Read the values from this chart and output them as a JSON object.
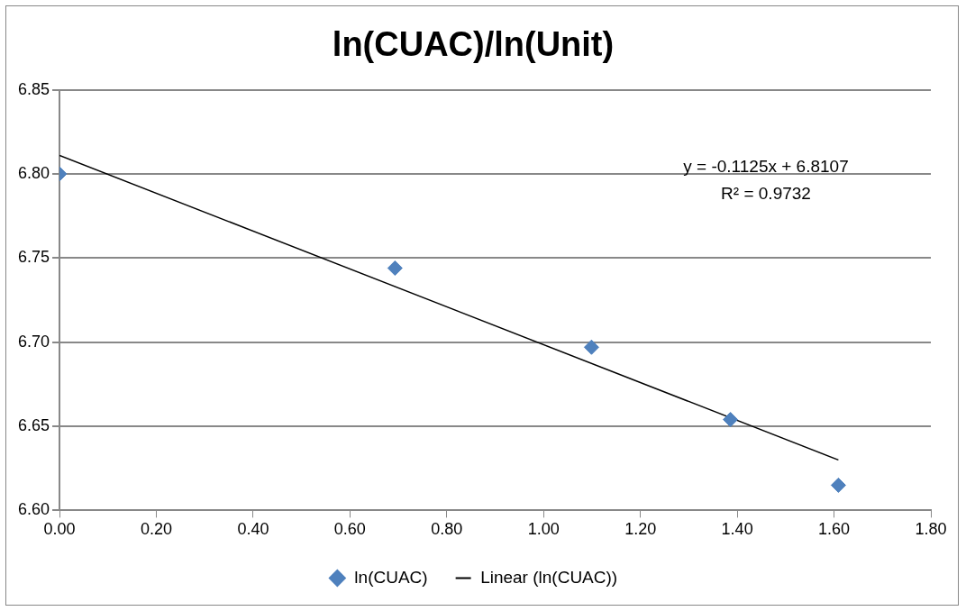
{
  "chart_data": {
    "type": "scatter",
    "title": "ln(CUAC)/ln(Unit)",
    "x": [
      0,
      0.693,
      1.099,
      1.386,
      1.609
    ],
    "series": [
      {
        "name": "ln(CUAC)",
        "color": "#4f81bd",
        "marker": "diamond",
        "values": [
          6.8,
          6.744,
          6.697,
          6.654,
          6.615
        ]
      },
      {
        "name": "Linear (ln(CUAC))",
        "type": "line",
        "color": "#000000",
        "marker": "none",
        "line_style": "solid",
        "x": [
          0,
          1.609
        ],
        "values": [
          6.811,
          6.63
        ]
      }
    ],
    "xlim": [
      0,
      1.8
    ],
    "xticks": [
      {
        "value": 0,
        "label": "0.00"
      },
      {
        "value": 0.2,
        "label": "0.20"
      },
      {
        "value": 0.4,
        "label": "0.40"
      },
      {
        "value": 0.6,
        "label": "0.60"
      },
      {
        "value": 0.8,
        "label": "0.80"
      },
      {
        "value": 1,
        "label": "1.00"
      },
      {
        "value": 1.2,
        "label": "1.20"
      },
      {
        "value": 1.4,
        "label": "1.40"
      },
      {
        "value": 1.6,
        "label": "1.60"
      },
      {
        "value": 1.8,
        "label": "1.80"
      }
    ],
    "ylim": [
      6.6,
      6.85
    ],
    "yticks": [
      {
        "value": 6.6,
        "label": "6.60"
      },
      6.65,
      {
        "value": 6.7,
        "label": "6.70"
      },
      6.75,
      {
        "value": 6.8,
        "label": "6.80"
      },
      6.85
    ],
    "annotations": [
      "y = -0.1125x + 6.8107",
      "R² = 0.9732"
    ],
    "grid": "y",
    "legend": "bottom"
  }
}
